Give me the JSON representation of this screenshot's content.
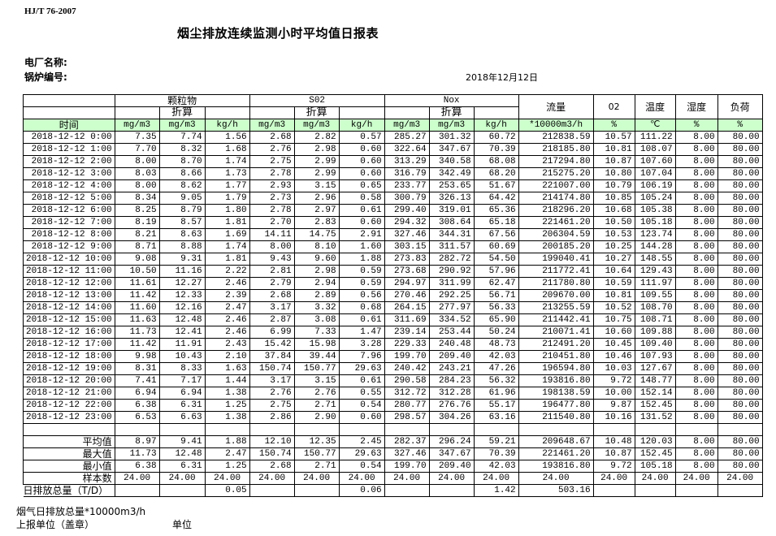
{
  "standard": "HJ/T  76-2007",
  "title": "烟尘排放连续监测小时平均值日报表",
  "plant_label": "电厂名称:",
  "boiler_label": "锅炉编号:",
  "date": "2018年12月12日",
  "header": {
    "groups": {
      "particulate": "颗粒物",
      "so2": "S02",
      "nox": "Nox",
      "flow": "流量",
      "o2": "02",
      "temp": "温度",
      "humidity": "湿度",
      "load": "负荷"
    },
    "converted": "折算",
    "time": "时间",
    "units": [
      "mg/m3",
      "mg/m3",
      "kg/h",
      "mg/m3",
      "mg/m3",
      "kg/h",
      "mg/m3",
      "mg/m3",
      "kg/h",
      "*10000m3/h",
      "%",
      "℃",
      "%",
      "%"
    ]
  },
  "rows": [
    {
      "time": "2018-12-12 0:00",
      "v": [
        "7.35",
        "7.74",
        "1.56",
        "2.68",
        "2.82",
        "0.57",
        "285.27",
        "301.32",
        "60.72",
        "212838.59",
        "10.57",
        "111.22",
        "8.00",
        "80.00"
      ]
    },
    {
      "time": "2018-12-12 1:00",
      "v": [
        "7.70",
        "8.32",
        "1.68",
        "2.76",
        "2.98",
        "0.60",
        "322.64",
        "347.67",
        "70.39",
        "218185.80",
        "10.81",
        "108.07",
        "8.00",
        "80.00"
      ]
    },
    {
      "time": "2018-12-12 2:00",
      "v": [
        "8.00",
        "8.70",
        "1.74",
        "2.75",
        "2.99",
        "0.60",
        "313.29",
        "340.58",
        "68.08",
        "217294.80",
        "10.87",
        "107.60",
        "8.00",
        "80.00"
      ]
    },
    {
      "time": "2018-12-12 3:00",
      "v": [
        "8.03",
        "8.66",
        "1.73",
        "2.78",
        "2.99",
        "0.60",
        "316.79",
        "342.49",
        "68.20",
        "215275.20",
        "10.80",
        "107.04",
        "8.00",
        "80.00"
      ]
    },
    {
      "time": "2018-12-12 4:00",
      "v": [
        "8.00",
        "8.62",
        "1.77",
        "2.93",
        "3.15",
        "0.65",
        "233.77",
        "253.65",
        "51.67",
        "221007.00",
        "10.79",
        "106.19",
        "8.00",
        "80.00"
      ]
    },
    {
      "time": "2018-12-12 5:00",
      "v": [
        "8.34",
        "9.05",
        "1.79",
        "2.73",
        "2.96",
        "0.58",
        "300.79",
        "326.13",
        "64.42",
        "214174.80",
        "10.85",
        "105.24",
        "8.00",
        "80.00"
      ]
    },
    {
      "time": "2018-12-12 6:00",
      "v": [
        "8.25",
        "8.79",
        "1.80",
        "2.78",
        "2.97",
        "0.61",
        "299.40",
        "319.01",
        "65.36",
        "218296.20",
        "10.68",
        "105.38",
        "8.00",
        "80.00"
      ]
    },
    {
      "time": "2018-12-12 7:00",
      "v": [
        "8.19",
        "8.57",
        "1.81",
        "2.70",
        "2.83",
        "0.60",
        "294.32",
        "308.64",
        "65.18",
        "221461.20",
        "10.50",
        "105.18",
        "8.00",
        "80.00"
      ]
    },
    {
      "time": "2018-12-12 8:00",
      "v": [
        "8.21",
        "8.63",
        "1.69",
        "14.11",
        "14.75",
        "2.91",
        "327.46",
        "344.31",
        "67.56",
        "206304.59",
        "10.53",
        "123.74",
        "8.00",
        "80.00"
      ]
    },
    {
      "time": "2018-12-12 9:00",
      "v": [
        "8.71",
        "8.88",
        "1.74",
        "8.00",
        "8.10",
        "1.60",
        "303.15",
        "311.57",
        "60.69",
        "200185.20",
        "10.25",
        "144.28",
        "8.00",
        "80.00"
      ]
    },
    {
      "time": "2018-12-12 10:00",
      "v": [
        "9.08",
        "9.31",
        "1.81",
        "9.43",
        "9.60",
        "1.88",
        "273.83",
        "282.72",
        "54.50",
        "199040.41",
        "10.27",
        "148.55",
        "8.00",
        "80.00"
      ]
    },
    {
      "time": "2018-12-12 11:00",
      "v": [
        "10.50",
        "11.16",
        "2.22",
        "2.81",
        "2.98",
        "0.59",
        "273.68",
        "290.92",
        "57.96",
        "211772.41",
        "10.64",
        "129.43",
        "8.00",
        "80.00"
      ]
    },
    {
      "time": "2018-12-12 12:00",
      "v": [
        "11.61",
        "12.27",
        "2.46",
        "2.79",
        "2.94",
        "0.59",
        "294.97",
        "311.99",
        "62.47",
        "211780.80",
        "10.59",
        "111.97",
        "8.00",
        "80.00"
      ]
    },
    {
      "time": "2018-12-12 13:00",
      "v": [
        "11.42",
        "12.33",
        "2.39",
        "2.68",
        "2.89",
        "0.56",
        "270.46",
        "292.25",
        "56.71",
        "209670.00",
        "10.81",
        "109.55",
        "8.00",
        "80.00"
      ]
    },
    {
      "time": "2018-12-12 14:00",
      "v": [
        "11.60",
        "12.16",
        "2.47",
        "3.17",
        "3.32",
        "0.68",
        "264.15",
        "277.97",
        "56.33",
        "213255.59",
        "10.52",
        "108.70",
        "8.00",
        "80.00"
      ]
    },
    {
      "time": "2018-12-12 15:00",
      "v": [
        "11.63",
        "12.48",
        "2.46",
        "2.87",
        "3.08",
        "0.61",
        "311.69",
        "334.52",
        "65.90",
        "211442.41",
        "10.75",
        "108.71",
        "8.00",
        "80.00"
      ]
    },
    {
      "time": "2018-12-12 16:00",
      "v": [
        "11.73",
        "12.41",
        "2.46",
        "6.99",
        "7.33",
        "1.47",
        "239.14",
        "253.44",
        "50.24",
        "210071.41",
        "10.60",
        "109.88",
        "8.00",
        "80.00"
      ]
    },
    {
      "time": "2018-12-12 17:00",
      "v": [
        "11.42",
        "11.91",
        "2.43",
        "15.42",
        "15.98",
        "3.28",
        "229.33",
        "240.48",
        "48.73",
        "212491.20",
        "10.45",
        "109.40",
        "8.00",
        "80.00"
      ]
    },
    {
      "time": "2018-12-12 18:00",
      "v": [
        "9.98",
        "10.43",
        "2.10",
        "37.84",
        "39.44",
        "7.96",
        "199.70",
        "209.40",
        "42.03",
        "210451.80",
        "10.46",
        "107.93",
        "8.00",
        "80.00"
      ]
    },
    {
      "time": "2018-12-12 19:00",
      "v": [
        "8.31",
        "8.33",
        "1.63",
        "150.74",
        "150.77",
        "29.63",
        "240.42",
        "243.21",
        "47.26",
        "196594.80",
        "10.03",
        "127.67",
        "8.00",
        "80.00"
      ]
    },
    {
      "time": "2018-12-12 20:00",
      "v": [
        "7.41",
        "7.17",
        "1.44",
        "3.17",
        "3.15",
        "0.61",
        "290.58",
        "284.23",
        "56.32",
        "193816.80",
        "9.72",
        "148.77",
        "8.00",
        "80.00"
      ]
    },
    {
      "time": "2018-12-12 21:00",
      "v": [
        "6.94",
        "6.94",
        "1.38",
        "2.76",
        "2.76",
        "0.55",
        "312.72",
        "312.28",
        "61.96",
        "198138.59",
        "10.00",
        "152.14",
        "8.00",
        "80.00"
      ]
    },
    {
      "time": "2018-12-12 22:00",
      "v": [
        "6.38",
        "6.31",
        "1.25",
        "2.75",
        "2.71",
        "0.54",
        "280.77",
        "276.76",
        "55.17",
        "196477.80",
        "9.87",
        "152.45",
        "8.00",
        "80.00"
      ]
    },
    {
      "time": "2018-12-12 23:00",
      "v": [
        "6.53",
        "6.63",
        "1.38",
        "2.86",
        "2.90",
        "0.60",
        "298.57",
        "304.26",
        "63.16",
        "211540.80",
        "10.16",
        "131.52",
        "8.00",
        "80.00"
      ]
    }
  ],
  "stats": [
    {
      "label": "平均值",
      "v": [
        "8.97",
        "9.41",
        "1.88",
        "12.10",
        "12.35",
        "2.45",
        "282.37",
        "296.24",
        "59.21",
        "209648.67",
        "10.48",
        "120.03",
        "8.00",
        "80.00"
      ]
    },
    {
      "label": "最大值",
      "v": [
        "11.73",
        "12.48",
        "2.47",
        "150.74",
        "150.77",
        "29.63",
        "327.46",
        "347.67",
        "70.39",
        "221461.20",
        "10.87",
        "152.45",
        "8.00",
        "80.00"
      ]
    },
    {
      "label": "最小值",
      "v": [
        "6.38",
        "6.31",
        "1.25",
        "2.68",
        "2.71",
        "0.54",
        "199.70",
        "209.40",
        "42.03",
        "193816.80",
        "9.72",
        "105.18",
        "8.00",
        "80.00"
      ]
    },
    {
      "label": "样本数",
      "v": [
        "24.00",
        "24.00",
        "24.00",
        "24.00",
        "24.00",
        "24.00",
        "24.00",
        "24.00",
        "24.00",
        "24.00",
        "24.00",
        "24.00",
        "24.00",
        "24.00"
      ]
    }
  ],
  "daily": {
    "label": "日排放总量（T/D）",
    "v": [
      "",
      "",
      "0.05",
      "",
      "",
      "0.06",
      "",
      "",
      "1.42",
      "503.16",
      "",
      "",
      "",
      ""
    ]
  },
  "footer": {
    "flue_gas_total": "烟气日排放总量*10000m3/h",
    "reporting_unit": "上报单位（盖章）",
    "unit": "单位"
  }
}
